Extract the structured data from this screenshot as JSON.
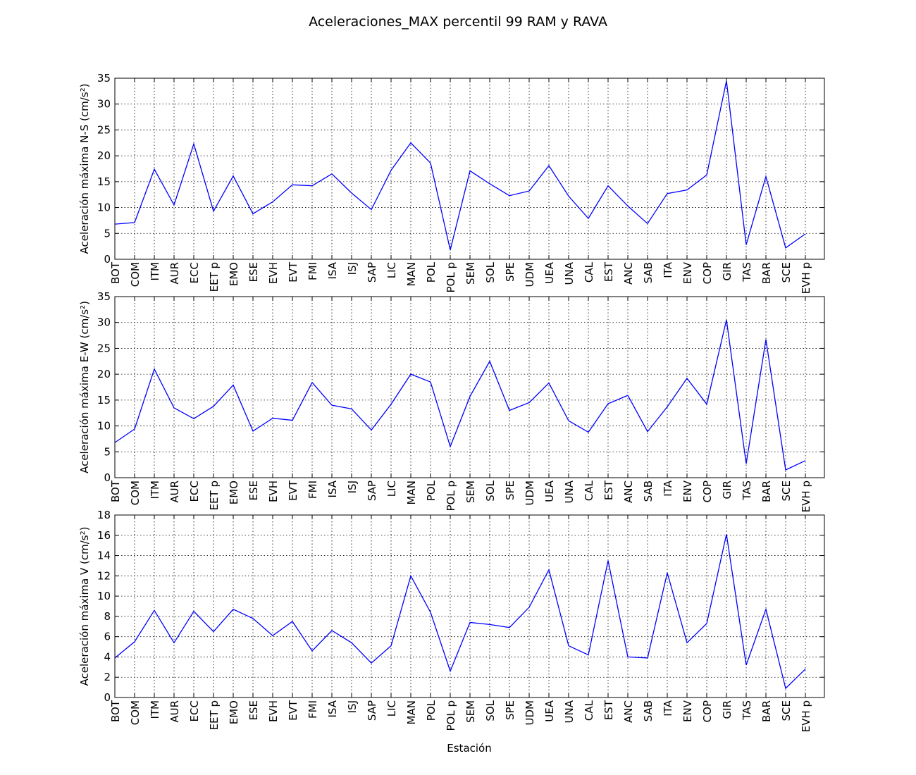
{
  "figure": {
    "title": "Aceleraciones_MAX percentil 99 RAM y RAVA",
    "xlabel": "Estación",
    "line_color": "#0000ff"
  },
  "chart_data": [
    {
      "type": "line",
      "ylabel": "Aceleración máxima N-S (cm/s²)",
      "ylim": [
        0,
        35
      ],
      "yticks": [
        0,
        5,
        10,
        15,
        20,
        25,
        30,
        35
      ],
      "grid": true,
      "categories": [
        "BOT",
        "COM",
        "ITM",
        "AUR",
        "ECC",
        "EET p",
        "EMO",
        "ESE",
        "EVH",
        "EVT",
        "FMI",
        "ISA",
        "ISJ",
        "SAP",
        "LIC",
        "MAN",
        "POL",
        "POL p",
        "SEM",
        "SOL",
        "SPE",
        "UDM",
        "UEA",
        "UNA",
        "CAL",
        "EST",
        "ANC",
        "SAB",
        "ITA",
        "ENV",
        "COP",
        "GIR",
        "TAS",
        "BAR",
        "SCE",
        "EVH p"
      ],
      "values": [
        6.8,
        7.1,
        17.4,
        10.5,
        22.3,
        9.3,
        16.1,
        8.8,
        11.1,
        14.4,
        14.2,
        16.5,
        12.8,
        9.6,
        17.2,
        22.5,
        18.6,
        1.8,
        17.1,
        14.6,
        12.3,
        13.2,
        18.1,
        12.2,
        7.9,
        14.2,
        10.3,
        6.9,
        12.7,
        13.4,
        16.3,
        34.5,
        2.8,
        16.0,
        2.2,
        4.9
      ]
    },
    {
      "type": "line",
      "ylabel": "Aceleración máxima E-W (cm/s²)",
      "ylim": [
        0,
        35
      ],
      "yticks": [
        0,
        5,
        10,
        15,
        20,
        25,
        30,
        35
      ],
      "grid": true,
      "categories": [
        "BOT",
        "COM",
        "ITM",
        "AUR",
        "ECC",
        "EET p",
        "EMO",
        "ESE",
        "EVH",
        "EVT",
        "FMI",
        "ISA",
        "ISJ",
        "SAP",
        "LIC",
        "MAN",
        "POL",
        "POL p",
        "SEM",
        "SOL",
        "SPE",
        "UDM",
        "UEA",
        "UNA",
        "CAL",
        "EST",
        "ANC",
        "SAB",
        "ITA",
        "ENV",
        "COP",
        "GIR",
        "TAS",
        "BAR",
        "SCE",
        "EVH p"
      ],
      "values": [
        6.8,
        9.4,
        21.0,
        13.5,
        11.4,
        13.8,
        17.9,
        9.0,
        11.5,
        11.1,
        18.4,
        14.0,
        13.3,
        9.2,
        14.2,
        20.0,
        18.5,
        6.0,
        15.7,
        22.5,
        13.0,
        14.5,
        18.3,
        11.0,
        8.8,
        14.3,
        15.9,
        8.9,
        13.7,
        19.2,
        14.2,
        30.5,
        2.7,
        26.7,
        1.5,
        3.3
      ]
    },
    {
      "type": "line",
      "ylabel": "Aceleración máxima V (cm/s²)",
      "ylim": [
        0,
        18
      ],
      "yticks": [
        0,
        2,
        4,
        6,
        8,
        10,
        12,
        14,
        16,
        18
      ],
      "grid": true,
      "categories": [
        "BOT",
        "COM",
        "ITM",
        "AUR",
        "ECC",
        "EET p",
        "EMO",
        "ESE",
        "EVH",
        "EVT",
        "FMI",
        "ISA",
        "ISJ",
        "SAP",
        "LIC",
        "MAN",
        "POL",
        "POL p",
        "SEM",
        "SOL",
        "SPE",
        "UDM",
        "UEA",
        "UNA",
        "CAL",
        "EST",
        "ANC",
        "SAB",
        "ITA",
        "ENV",
        "COP",
        "GIR",
        "TAS",
        "BAR",
        "SCE",
        "EVH p"
      ],
      "values": [
        3.9,
        5.5,
        8.6,
        5.4,
        8.5,
        6.5,
        8.7,
        7.8,
        6.1,
        7.5,
        4.6,
        6.6,
        5.4,
        3.4,
        5.1,
        12.0,
        8.4,
        2.6,
        7.4,
        7.2,
        6.9,
        8.9,
        12.6,
        5.1,
        4.2,
        13.5,
        4.0,
        3.9,
        12.3,
        5.4,
        7.3,
        16.1,
        3.2,
        8.7,
        0.9,
        2.8
      ]
    }
  ]
}
